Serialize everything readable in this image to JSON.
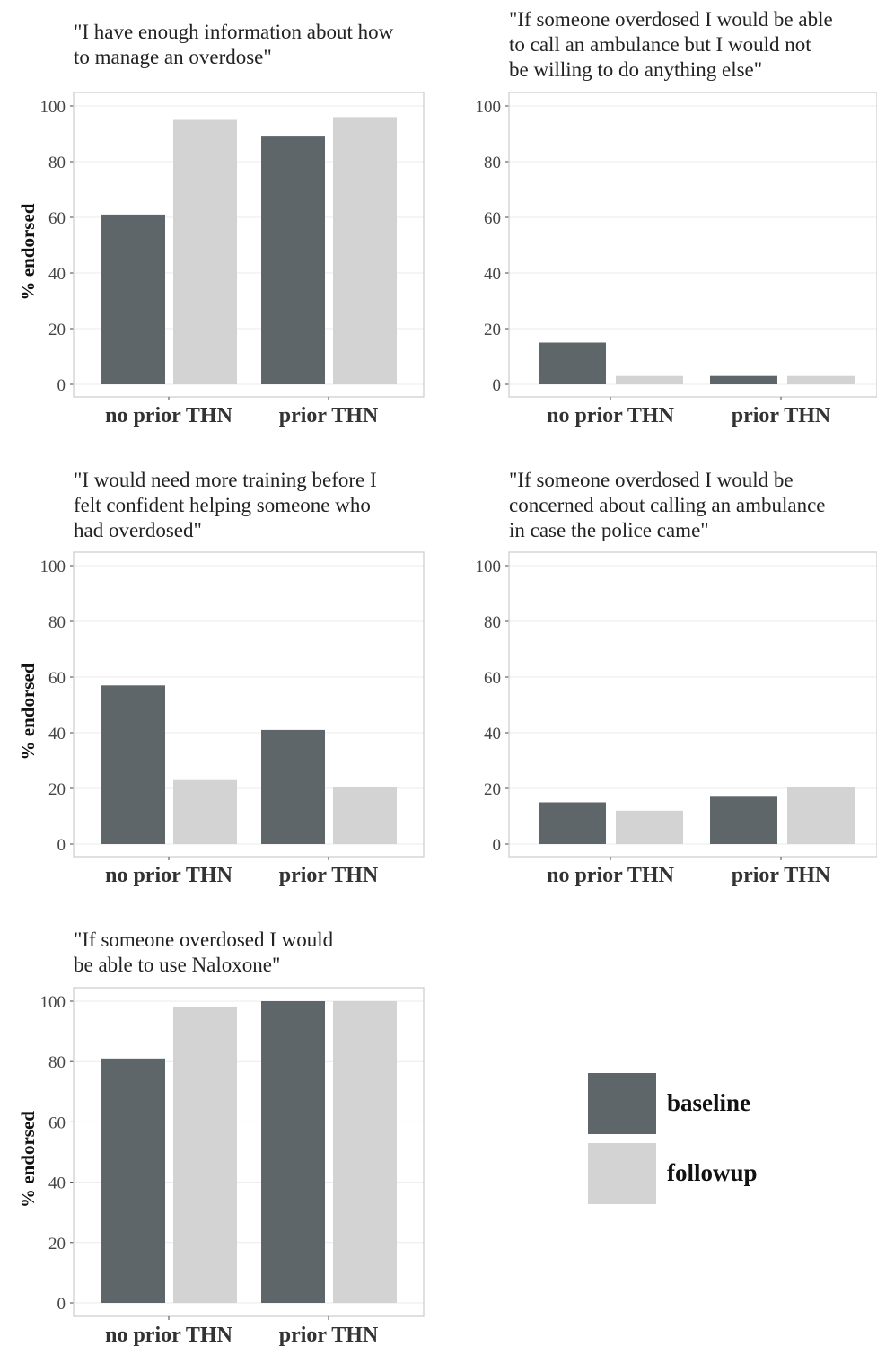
{
  "colors": {
    "baseline": "#5e666a",
    "followup": "#d3d3d3"
  },
  "legend": [
    {
      "key": "baseline",
      "label": "baseline"
    },
    {
      "key": "followup",
      "label": "followup"
    }
  ],
  "chart_data": [
    {
      "type": "bar",
      "title": "\"I have enough information about how\nto manage an overdose\"",
      "categories": [
        "no prior THN",
        "prior THN"
      ],
      "series": [
        {
          "name": "baseline",
          "values": [
            61,
            89
          ]
        },
        {
          "name": "followup",
          "values": [
            95,
            96
          ]
        }
      ],
      "ylabel": "% endorsed",
      "ylim": [
        0,
        100
      ],
      "yticks": [
        0,
        20,
        40,
        60,
        80,
        100
      ],
      "grid": true
    },
    {
      "type": "bar",
      "title": "\"If someone overdosed I would be able\nto call an ambulance but I would not\nbe willing to do anything else\"",
      "categories": [
        "no prior THN",
        "prior THN"
      ],
      "series": [
        {
          "name": "baseline",
          "values": [
            15,
            3
          ]
        },
        {
          "name": "followup",
          "values": [
            3,
            3
          ]
        }
      ],
      "ylabel": "",
      "ylim": [
        0,
        100
      ],
      "yticks": [
        0,
        20,
        40,
        60,
        80,
        100
      ],
      "grid": true
    },
    {
      "type": "bar",
      "title": "\"I would need more training before I\nfelt confident helping someone who\nhad overdosed\"",
      "categories": [
        "no prior THN",
        "prior THN"
      ],
      "series": [
        {
          "name": "baseline",
          "values": [
            57,
            41
          ]
        },
        {
          "name": "followup",
          "values": [
            23,
            20.5
          ]
        }
      ],
      "ylabel": "% endorsed",
      "ylim": [
        0,
        100
      ],
      "yticks": [
        0,
        20,
        40,
        60,
        80,
        100
      ],
      "grid": true
    },
    {
      "type": "bar",
      "title": "\"If someone overdosed I would be\nconcerned about calling an ambulance\n in case the police came\"",
      "categories": [
        "no prior THN",
        "prior THN"
      ],
      "series": [
        {
          "name": "baseline",
          "values": [
            15,
            17
          ]
        },
        {
          "name": "followup",
          "values": [
            12,
            20.5
          ]
        }
      ],
      "ylabel": "",
      "ylim": [
        0,
        100
      ],
      "yticks": [
        0,
        20,
        40,
        60,
        80,
        100
      ],
      "grid": true
    },
    {
      "type": "bar",
      "title": "\"If someone overdosed I would\nbe able to use Naloxone\"",
      "categories": [
        "no prior THN",
        "prior THN"
      ],
      "series": [
        {
          "name": "baseline",
          "values": [
            81,
            100
          ]
        },
        {
          "name": "followup",
          "values": [
            98,
            100
          ]
        }
      ],
      "ylabel": "% endorsed",
      "ylim": [
        0,
        100
      ],
      "yticks": [
        0,
        20,
        40,
        60,
        80,
        100
      ],
      "grid": true
    }
  ]
}
